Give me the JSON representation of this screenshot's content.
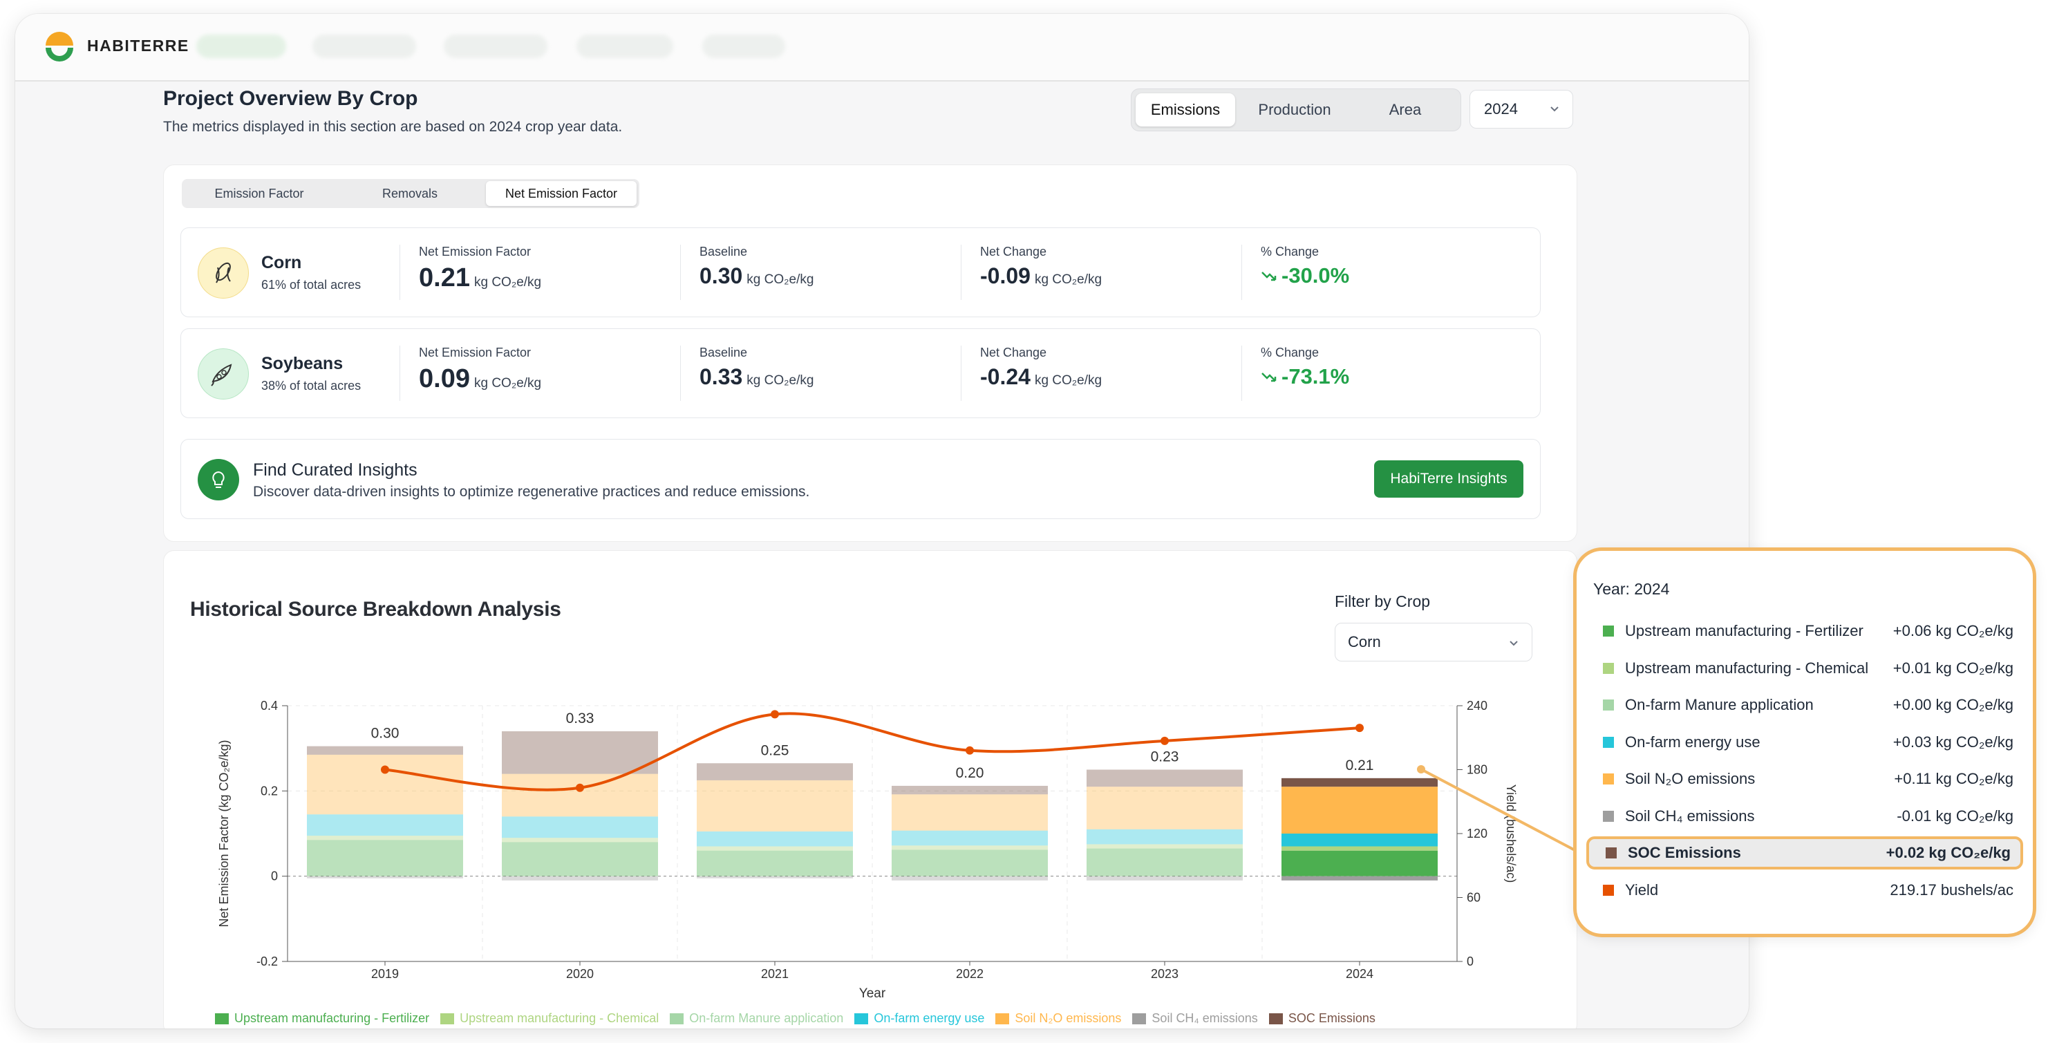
{
  "app": {
    "brand": "HabiTerre"
  },
  "overview": {
    "title": "Project Overview By Crop",
    "subtitle": "The metrics displayed in this section are based on 2024 crop year data.",
    "view_tabs": [
      "Emissions",
      "Production",
      "Area"
    ],
    "active_view": "Emissions",
    "year": "2024",
    "metric_tabs": [
      "Emission Factor",
      "Removals",
      "Net Emission Factor"
    ],
    "active_metric": "Net Emission Factor",
    "labels": {
      "nef": "Net Emission Factor",
      "baseline": "Baseline",
      "net_change": "Net Change",
      "pct_change": "% Change"
    },
    "unit": "kg CO₂e/kg",
    "crops": [
      {
        "name": "Corn",
        "share": "61% of total acres",
        "nef": "0.21",
        "baseline": "0.30",
        "net_change": "-0.09",
        "pct_change": "-30.0%",
        "icon": "corn-icon"
      },
      {
        "name": "Soybeans",
        "share": "38% of total acres",
        "nef": "0.09",
        "baseline": "0.33",
        "net_change": "-0.24",
        "pct_change": "-73.1%",
        "icon": "soybean-icon"
      }
    ],
    "insights": {
      "title": "Find Curated Insights",
      "description": "Discover data-driven insights to optimize regenerative practices and reduce emissions.",
      "button": "HabiTerre Insights"
    }
  },
  "history": {
    "title": "Historical Source Breakdown Analysis",
    "filter_label": "Filter by Crop",
    "filter_value": "Corn"
  },
  "chart_data": {
    "type": "bar",
    "x": [
      "2019",
      "2020",
      "2021",
      "2022",
      "2023",
      "2024"
    ],
    "xlabel": "Year",
    "ylabel": "Net Emission Factor (kg CO₂e/kg)",
    "y2label": "Yield (bushels/ac)",
    "ylim": [
      -0.2,
      0.4
    ],
    "yticks": [
      "0.4",
      "0.2",
      "0",
      "-0.2"
    ],
    "y2lim": [
      0,
      240
    ],
    "y2ticks": [
      "240",
      "180",
      "120",
      "60",
      "0"
    ],
    "totals": [
      "0.30",
      "0.33",
      "0.25",
      "0.20",
      "0.23",
      "0.21"
    ],
    "highlighted_year": "2024",
    "stacked_series": [
      {
        "name": "Upstream manufacturing - Fertilizer",
        "color": "#4caf50",
        "values": [
          0.085,
          0.08,
          0.06,
          0.062,
          0.065,
          0.06
        ]
      },
      {
        "name": "Upstream manufacturing - Chemical",
        "color": "#aed581",
        "values": [
          0.01,
          0.01,
          0.01,
          0.01,
          0.01,
          0.01
        ]
      },
      {
        "name": "On-farm Manure application",
        "color": "#a5d6a7",
        "values": [
          0.0,
          0.0,
          0.0,
          0.0,
          0.0,
          0.0
        ]
      },
      {
        "name": "On-farm energy use",
        "color": "#26c6da",
        "values": [
          0.05,
          0.05,
          0.035,
          0.035,
          0.035,
          0.03
        ]
      },
      {
        "name": "Soil N₂O emissions",
        "color": "#ffb74d",
        "values": [
          0.14,
          0.1,
          0.12,
          0.085,
          0.1,
          0.11
        ]
      },
      {
        "name": "Soil CH₄ emissions",
        "color": "#9e9e9e",
        "values": [
          -0.005,
          -0.01,
          -0.005,
          -0.01,
          -0.01,
          -0.01
        ]
      },
      {
        "name": "SOC Emissions",
        "color": "#795548",
        "values": [
          0.02,
          0.1,
          0.04,
          0.02,
          0.04,
          0.02
        ]
      }
    ],
    "line_series": {
      "name": "Yield",
      "color": "#e65100",
      "values": [
        180,
        163,
        232,
        198,
        207,
        219.17
      ]
    }
  },
  "tooltip": {
    "year_label": "Year: 2024",
    "rows": [
      {
        "label": "Upstream manufacturing - Fertilizer",
        "value": "+0.06 kg CO₂e/kg",
        "color": "#4caf50"
      },
      {
        "label": "Upstream manufacturing - Chemical",
        "value": "+0.01 kg CO₂e/kg",
        "color": "#aed581"
      },
      {
        "label": "On-farm Manure application",
        "value": "+0.00 kg CO₂e/kg",
        "color": "#a5d6a7"
      },
      {
        "label": "On-farm energy use",
        "value": "+0.03 kg CO₂e/kg",
        "color": "#26c6da"
      },
      {
        "label": "Soil N₂O emissions",
        "value": "+0.11 kg CO₂e/kg",
        "color": "#ffb74d"
      },
      {
        "label": "Soil CH₄ emissions",
        "value": "-0.01 kg CO₂e/kg",
        "color": "#9e9e9e"
      },
      {
        "label": "SOC Emissions",
        "value": "+0.02 kg CO₂e/kg",
        "color": "#795548",
        "highlighted": true
      },
      {
        "label": "Yield",
        "value": "219.17 bushels/ac",
        "color": "#e65100"
      }
    ]
  }
}
